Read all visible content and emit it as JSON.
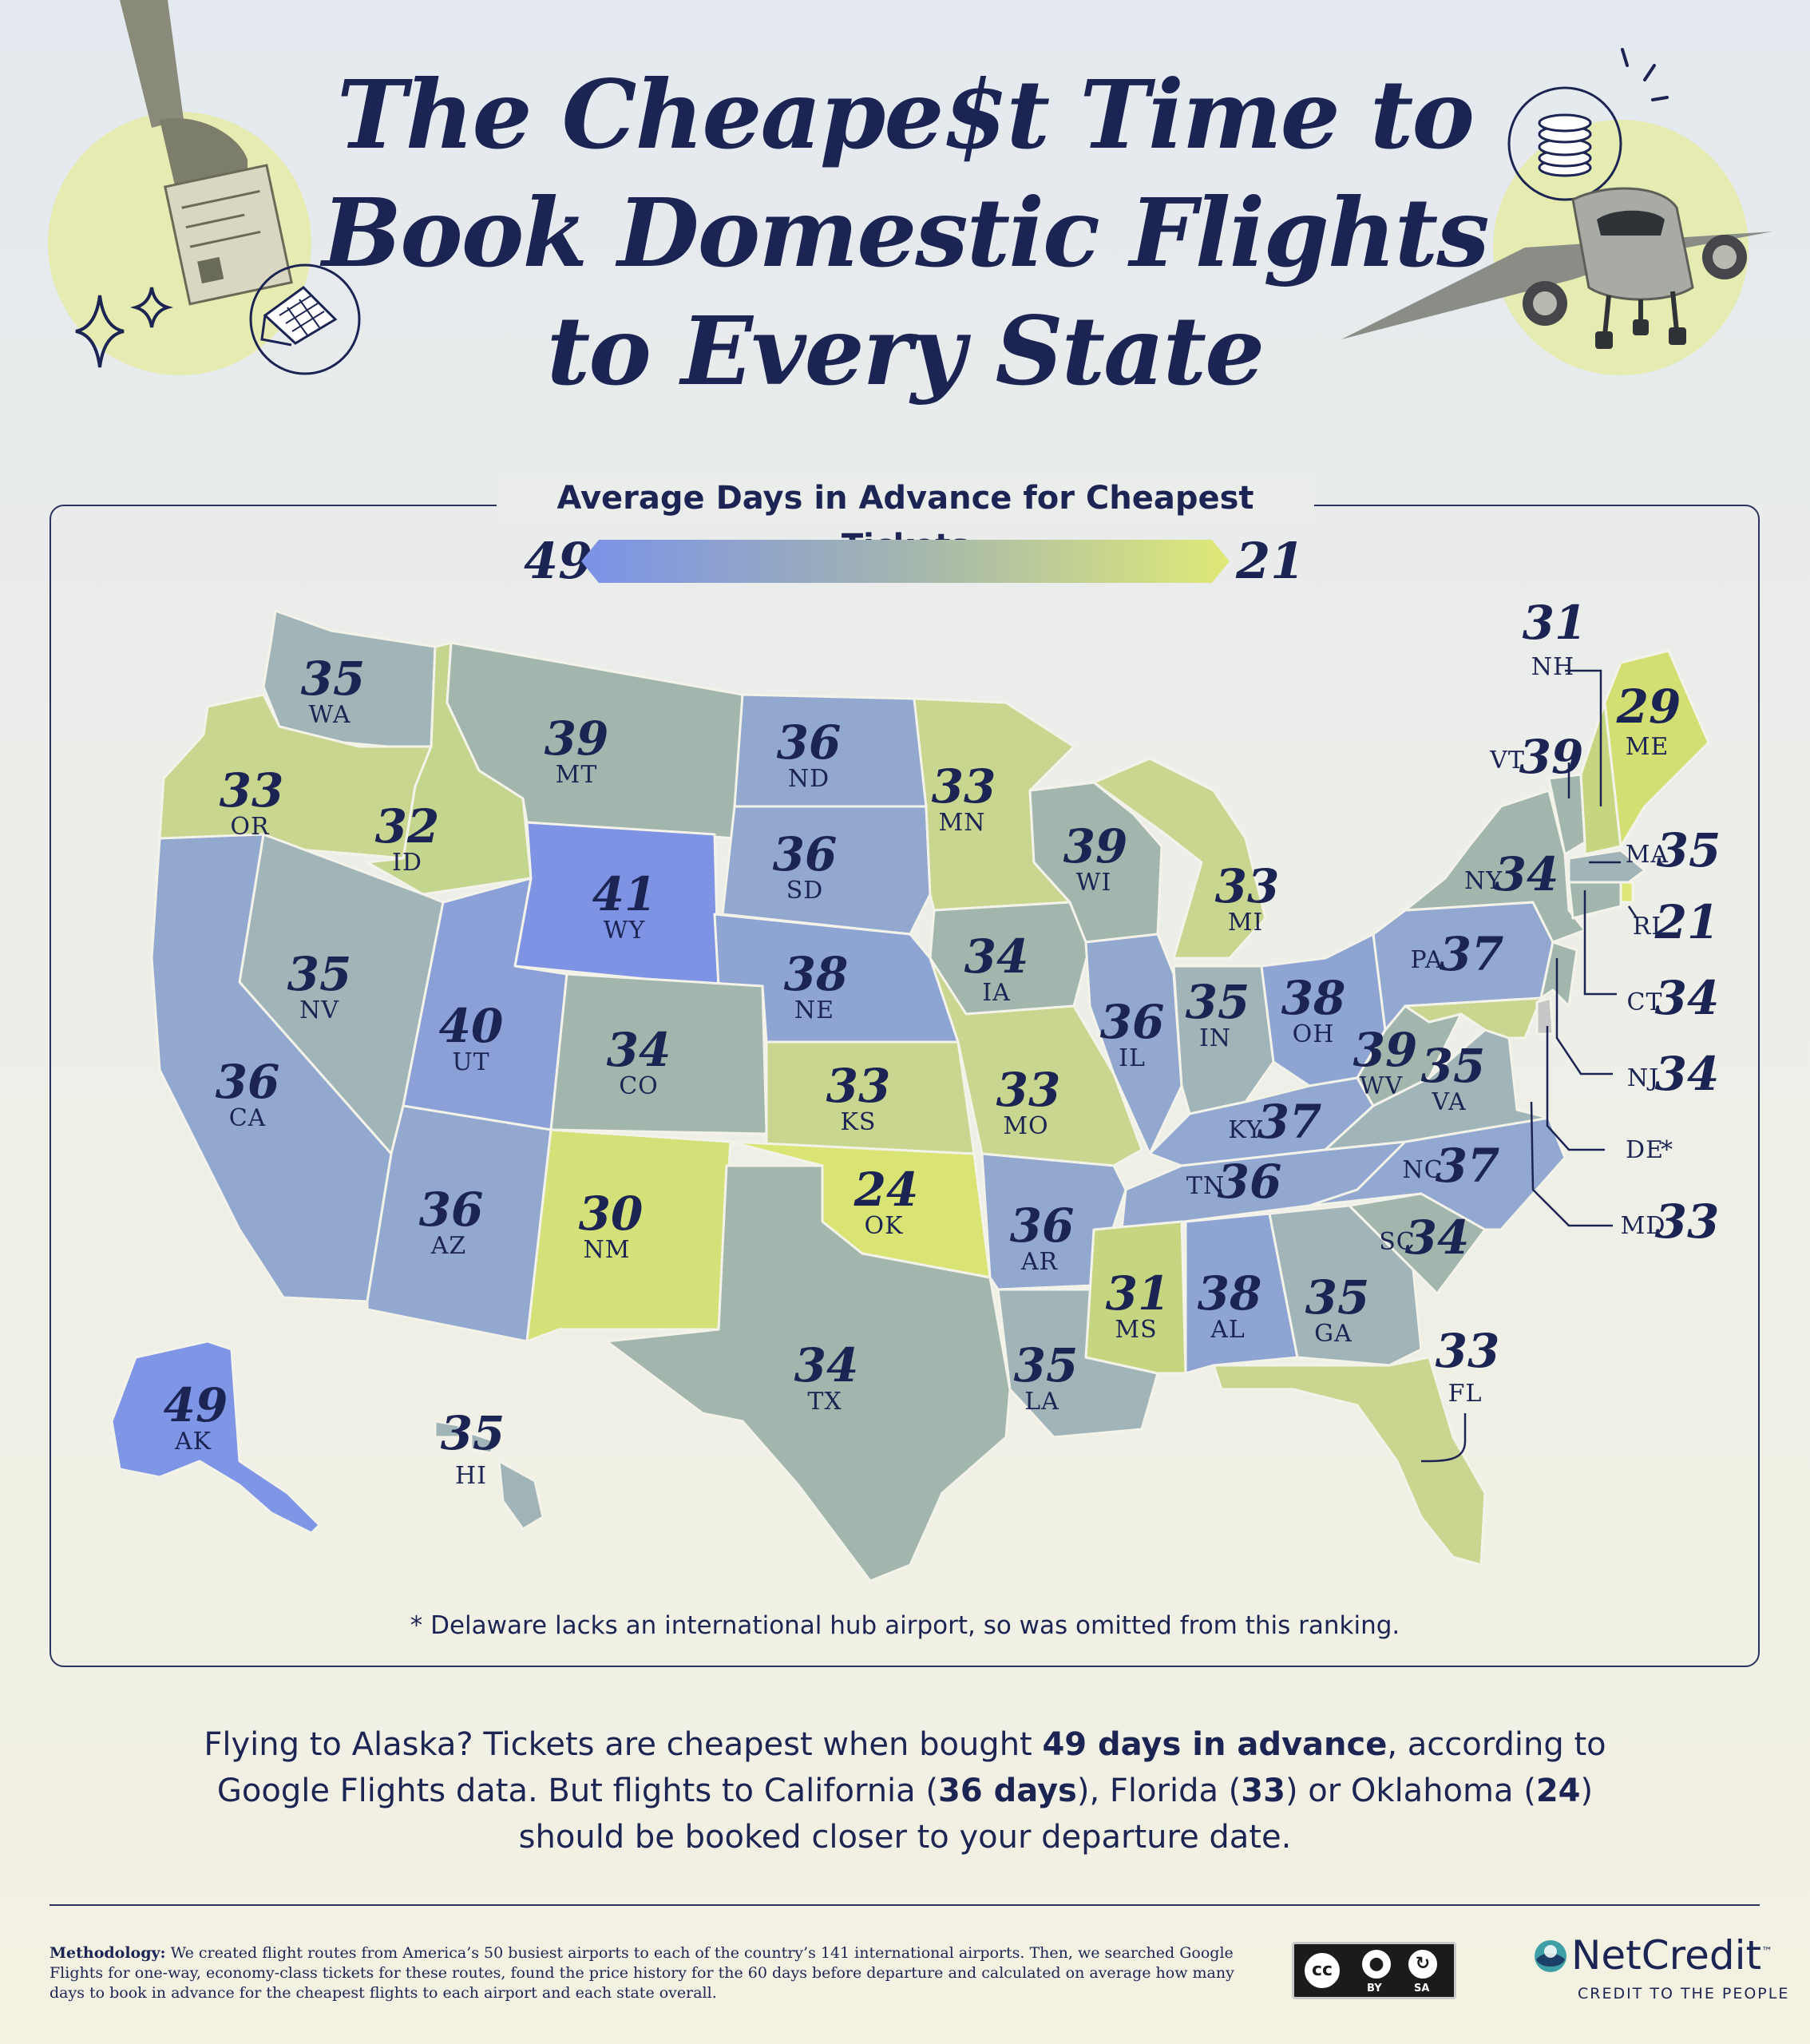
{
  "title_lines": [
    "The Cheape$t Time to",
    "Book Domestic Flights",
    "to Every State"
  ],
  "legend": {
    "title": "Average Days in Advance for Cheapest Tickets",
    "max_label": "49",
    "min_label": "21",
    "max": 49,
    "min": 21
  },
  "states": {
    "WA": "35",
    "OR": "33",
    "ID": "32",
    "MT": "39",
    "ND": "36",
    "SD": "36",
    "WY": "41",
    "NE": "38",
    "NV": "35",
    "CA": "36",
    "UT": "40",
    "CO": "34",
    "KS": "33",
    "AZ": "36",
    "NM": "30",
    "OK": "24",
    "TX": "34",
    "MN": "33",
    "IA": "34",
    "MO": "33",
    "AR": "36",
    "LA": "35",
    "WI": "39",
    "IL": "36",
    "MI": "33",
    "IN": "35",
    "OH": "38",
    "KY": "37",
    "TN": "36",
    "MS": "31",
    "AL": "38",
    "GA": "35",
    "FL": "33",
    "SC": "34",
    "NC": "37",
    "VA": "35",
    "WV": "39",
    "PA": "37",
    "NY": "34",
    "VT": "39",
    "NH": "31",
    "ME": "29",
    "MA": "35",
    "RI": "21",
    "CT": "34",
    "NJ": "34",
    "DE": "*",
    "MD": "33",
    "AK": "49",
    "HI": "35"
  },
  "state_colors": {
    "c49": "#7f95e6",
    "c41": "#7e93e3",
    "c40": "#8aa0d7",
    "c38": "#8ea4d2",
    "c37": "#92a8d0",
    "c36": "#93a8cf",
    "c35": "#a1b4b8",
    "c34": "#a3b6ae",
    "c33": "#c9d690",
    "c32": "#c4d58e",
    "c31": "#c6d680",
    "c30": "#d3e178",
    "c29": "#d3df72",
    "c24": "#d9e475",
    "c21": "#dde878",
    "de": "#c7c7c7"
  },
  "footnote": "* Delaware lacks an international hub airport, so was omitted from this ranking.",
  "summary": {
    "p1": "Flying to Alaska? Tickets are cheapest when bought ",
    "b1": "49 days in advance",
    "p2": ", according to Google Flights data. But flights to California (",
    "b2": "36 days",
    "p3": "), Florida (",
    "b3": "33",
    "p4": ") or Oklahoma (",
    "b4": "24",
    "p5": ") should be booked closer to your departure date."
  },
  "methodology": {
    "label": "Methodology:",
    "text": " We created flight routes from America’s 50 busiest airports to each of the country’s 141 international airports. Then, we searched Google Flights for one-way, economy-class tickets for these routes, found the price history for the 60 days before departure and calculated on average how many days to book in advance for the cheapest flights to each airport and each state overall."
  },
  "license": {
    "cc": "cc",
    "by": "BY",
    "sa": "SA"
  },
  "brand": {
    "name": "NetCredit",
    "tagline": "CREDIT TO THE PEOPLE",
    "tm": "™"
  }
}
